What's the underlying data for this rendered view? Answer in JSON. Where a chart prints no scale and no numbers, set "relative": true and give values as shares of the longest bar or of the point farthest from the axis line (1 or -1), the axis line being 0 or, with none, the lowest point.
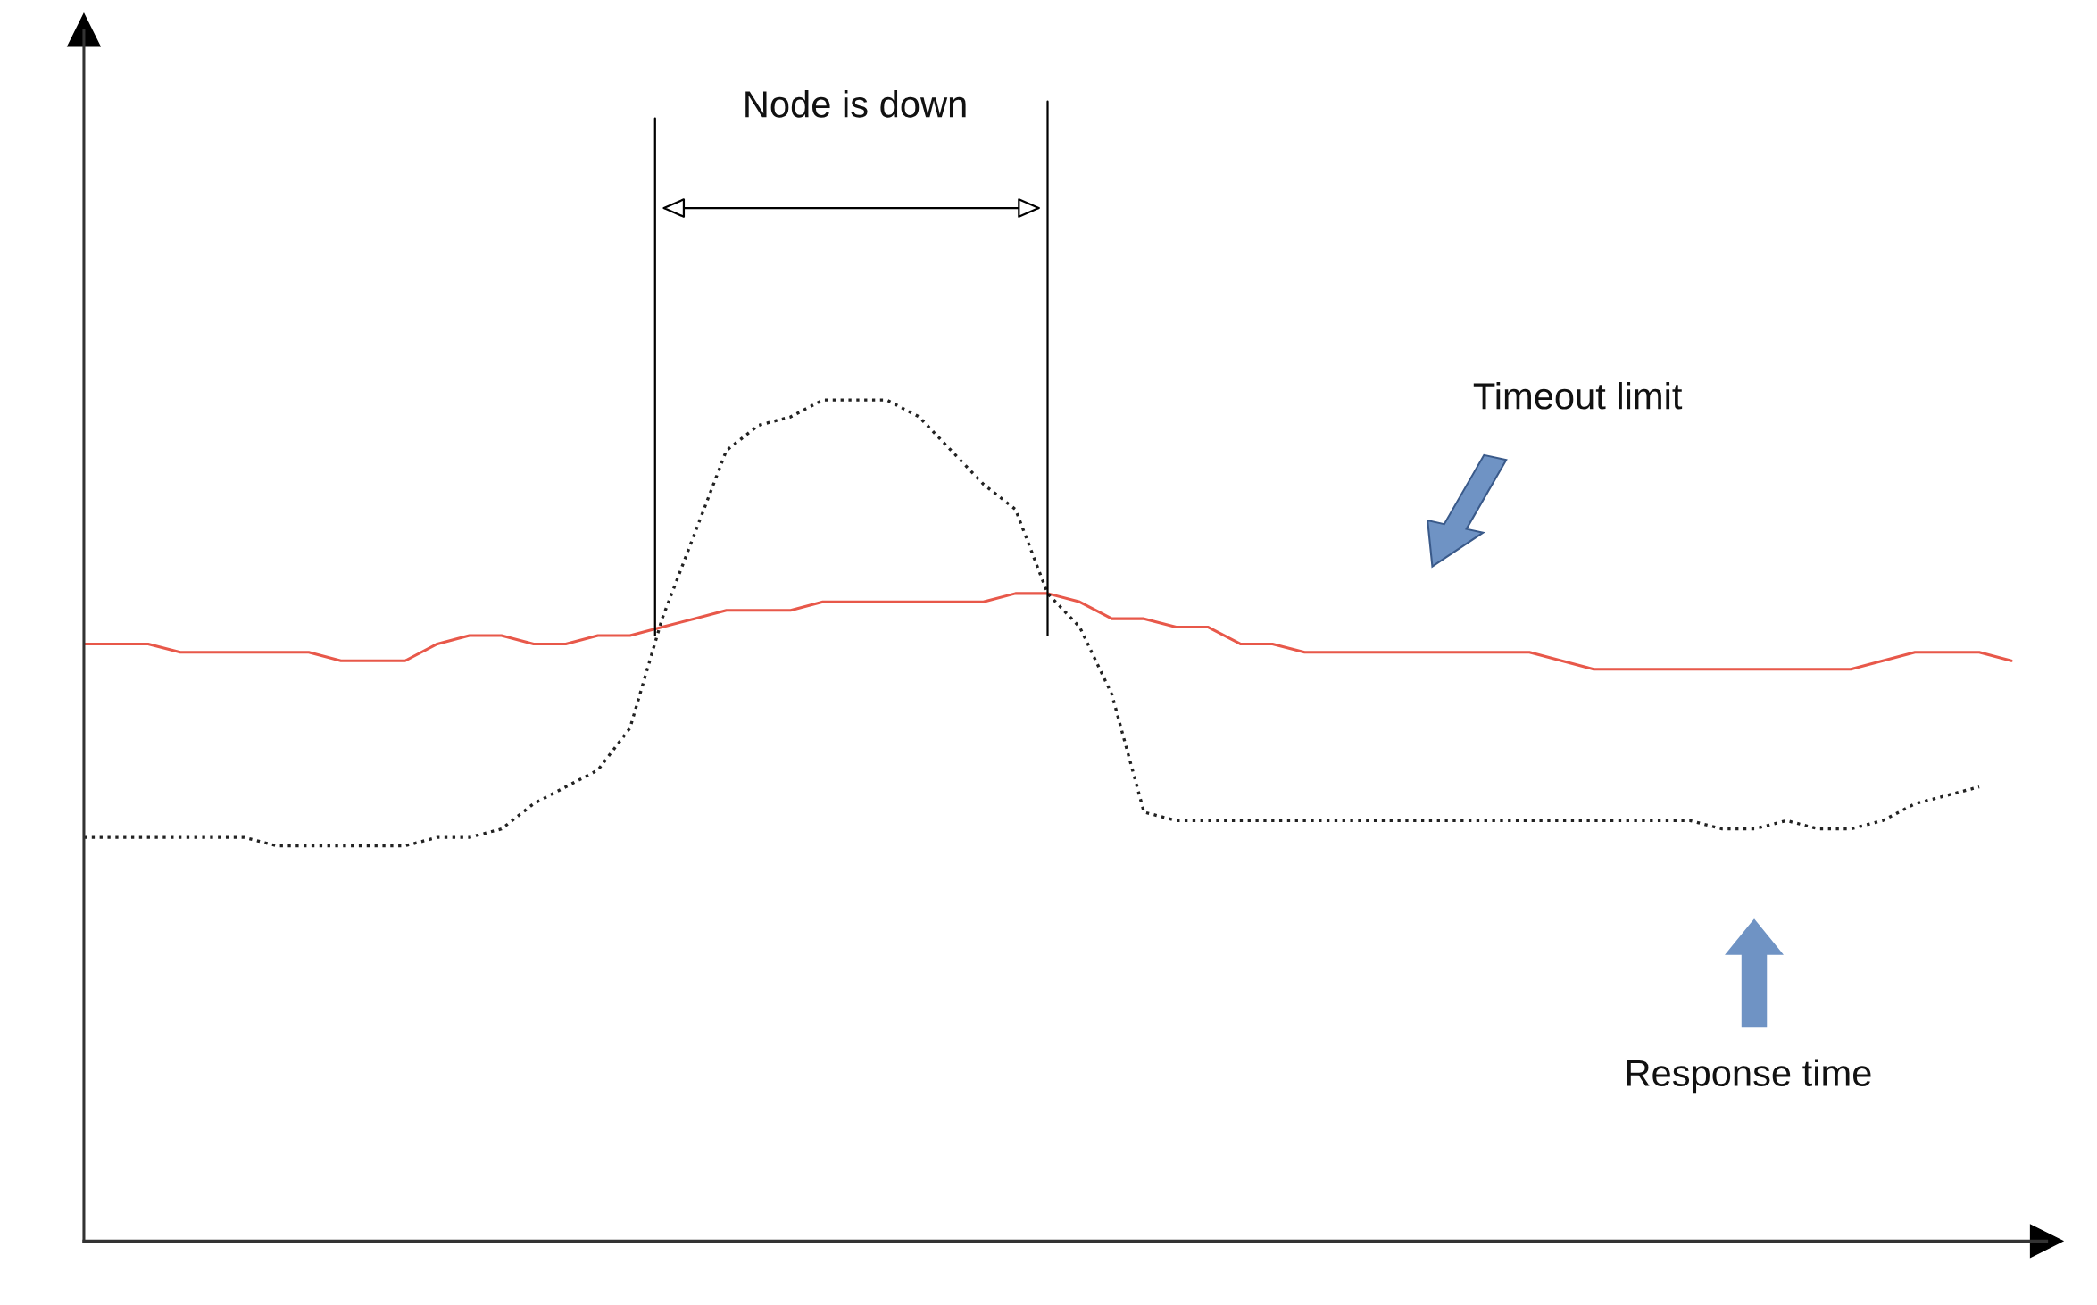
{
  "chart_data": {
    "type": "line",
    "relative": true,
    "legend": false,
    "marker": "none",
    "annotations": [
      "Node is down",
      "Timeout limit",
      "Response time"
    ],
    "categories": [
      null,
      null,
      null,
      null,
      null,
      null,
      null,
      null,
      null,
      null,
      null,
      null,
      null,
      null,
      null,
      null,
      null,
      null,
      null,
      null,
      null,
      null,
      null,
      null,
      null,
      null,
      null,
      null,
      null,
      null,
      null,
      null,
      null,
      null,
      null,
      null,
      null,
      null,
      null,
      null,
      null,
      null,
      null,
      null,
      null,
      null,
      null,
      null,
      null,
      null,
      null,
      null,
      null,
      null,
      null,
      null,
      null,
      null,
      null,
      null,
      null
    ],
    "series": [
      {
        "color": "#e8584a",
        "line_style": "solid",
        "values": [
          0.71,
          0.71,
          0.71,
          0.7,
          0.7,
          0.7,
          0.7,
          0.7,
          0.69,
          0.69,
          0.69,
          0.71,
          0.72,
          0.72,
          0.71,
          0.71,
          0.72,
          0.72,
          0.73,
          0.74,
          0.75,
          0.75,
          0.75,
          0.76,
          0.76,
          0.76,
          0.76,
          0.76,
          0.76,
          0.77,
          0.77,
          0.76,
          0.74,
          0.74,
          0.73,
          0.73,
          0.71,
          0.71,
          0.7,
          0.7,
          0.7,
          0.7,
          0.7,
          0.7,
          0.7,
          0.7,
          0.69,
          0.68,
          0.68,
          0.68,
          0.68,
          0.68,
          0.68,
          0.68,
          0.68,
          0.68,
          0.69,
          0.7,
          0.7,
          0.7,
          0.69
        ]
      },
      {
        "color": "#222222",
        "line_style": "dotted",
        "values": [
          0.48,
          0.48,
          0.48,
          0.48,
          0.48,
          0.48,
          0.47,
          0.47,
          0.47,
          0.47,
          0.47,
          0.48,
          0.48,
          0.49,
          0.52,
          0.54,
          0.56,
          0.61,
          0.74,
          0.84,
          0.94,
          0.97,
          0.98,
          1.0,
          1.0,
          1.0,
          0.98,
          0.94,
          0.9,
          0.87,
          0.77,
          0.73,
          0.65,
          0.51,
          0.5,
          0.5,
          0.5,
          0.5,
          0.5,
          0.5,
          0.5,
          0.5,
          0.5,
          0.5,
          0.5,
          0.5,
          0.5,
          0.5,
          0.5,
          0.5,
          0.5,
          0.49,
          0.49,
          0.5,
          0.49,
          0.49,
          0.5,
          0.52,
          0.53,
          0.54,
          null
        ]
      }
    ]
  }
}
